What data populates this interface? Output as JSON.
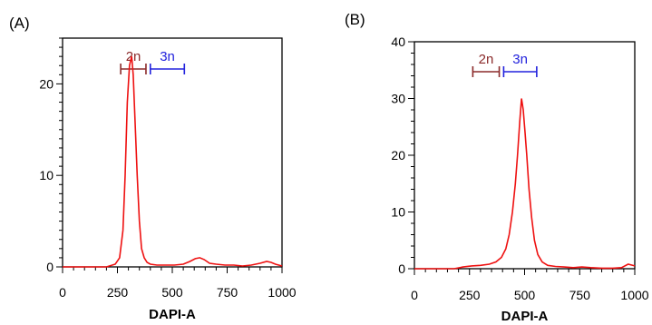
{
  "chart_data": [
    {
      "panel_label": "(A)",
      "type": "line",
      "xlabel": "DAPI-A",
      "ylabel": "",
      "xlim": [
        0,
        1000
      ],
      "ylim": [
        0,
        25
      ],
      "x_ticks": [
        0,
        250,
        500,
        750,
        1000
      ],
      "y_ticks": [
        0,
        10,
        20
      ],
      "x_tick_labels": [
        "0",
        "250",
        "500",
        "750",
        "1000"
      ],
      "y_tick_labels": [
        "0",
        "10",
        "20"
      ],
      "line_color": "#ee1111",
      "series": [
        {
          "x": [
            0,
            200,
            240,
            260,
            275,
            285,
            295,
            305,
            315,
            322,
            330,
            340,
            350,
            360,
            372,
            385,
            400,
            430,
            470,
            510,
            550,
            580,
            605,
            625,
            645,
            670,
            700,
            740,
            780,
            820,
            860,
            900,
            930,
            950,
            970,
            1000
          ],
          "y": [
            0,
            0,
            0.3,
            1,
            4,
            10,
            18,
            22,
            23,
            21,
            16,
            10,
            5,
            2,
            1,
            0.5,
            0.3,
            0.2,
            0.2,
            0.2,
            0.3,
            0.6,
            0.9,
            1,
            0.8,
            0.4,
            0.3,
            0.2,
            0.2,
            0.1,
            0.2,
            0.4,
            0.6,
            0.5,
            0.3,
            0.1
          ]
        }
      ],
      "gates": [
        {
          "label": "2n",
          "from": 265,
          "to": 380,
          "color": "#8b2a2a"
        },
        {
          "label": "3n",
          "from": 400,
          "to": 555,
          "color": "#2222dd"
        }
      ]
    },
    {
      "panel_label": "(B)",
      "type": "line",
      "xlabel": "DAPI-A",
      "ylabel": "",
      "xlim": [
        0,
        1000
      ],
      "ylim": [
        0,
        40
      ],
      "x_ticks": [
        0,
        250,
        500,
        750,
        1000
      ],
      "y_ticks": [
        0,
        10,
        20,
        30,
        40
      ],
      "x_tick_labels": [
        "0",
        "250",
        "500",
        "750",
        "1000"
      ],
      "y_tick_labels": [
        "0",
        "10",
        "20",
        "30",
        "40"
      ],
      "line_color": "#ee1111",
      "series": [
        {
          "x": [
            0,
            180,
            220,
            260,
            300,
            340,
            370,
            395,
            415,
            430,
            445,
            458,
            468,
            478,
            486,
            494,
            502,
            510,
            520,
            532,
            545,
            560,
            580,
            605,
            640,
            680,
            720,
            760,
            800,
            850,
            900,
            940,
            970,
            1000
          ],
          "y": [
            0,
            0,
            0.3,
            0.5,
            0.6,
            0.8,
            1.2,
            2,
            3.5,
            6,
            10,
            15,
            20,
            26,
            30,
            28,
            24,
            20,
            14,
            9,
            5,
            2.5,
            1.2,
            0.6,
            0.4,
            0.3,
            0.2,
            0.3,
            0.2,
            0.1,
            0.1,
            0.2,
            0.8,
            0.5
          ]
        }
      ],
      "gates": [
        {
          "label": "2n",
          "from": 265,
          "to": 385,
          "color": "#8b2a2a"
        },
        {
          "label": "3n",
          "from": 405,
          "to": 555,
          "color": "#2222dd"
        }
      ]
    }
  ]
}
